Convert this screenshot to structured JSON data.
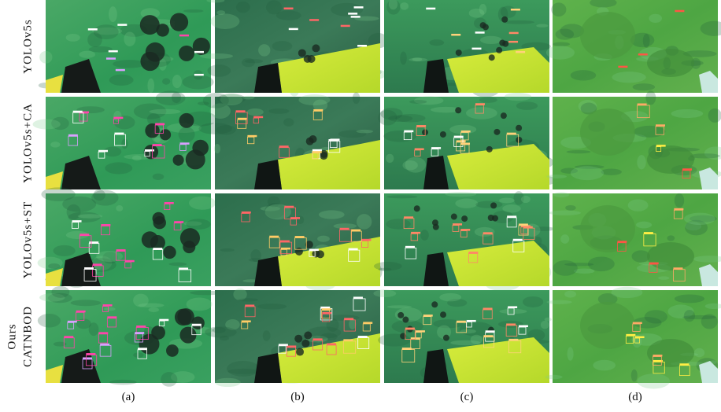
{
  "row_labels": [
    [
      "YOLOv5s"
    ],
    [
      "YOLOv5s+CA"
    ],
    [
      "YOLOv5s+ST"
    ],
    [
      "Ours",
      "CATNBOD"
    ]
  ],
  "column_labels": [
    "(a)",
    "(b)",
    "(c)",
    "(d)"
  ]
}
